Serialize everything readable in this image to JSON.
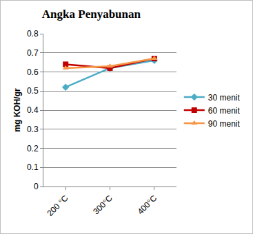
{
  "chart_data": {
    "type": "line",
    "title": "Angka Penyabunan",
    "y_label": "mg KOH/gr",
    "categories": [
      "200 °C",
      "300°C",
      "400°C"
    ],
    "series": [
      {
        "name": "30 menit",
        "color": "#4bacc6",
        "marker": "diamond",
        "values": [
          0.52,
          0.62,
          0.66
        ]
      },
      {
        "name": "60 menit",
        "color": "#c00000",
        "marker": "square",
        "values": [
          0.64,
          0.62,
          0.67
        ]
      },
      {
        "name": "90 menit",
        "color": "#f79646",
        "marker": "triangle-up",
        "values": [
          0.62,
          0.63,
          0.67
        ]
      }
    ],
    "ylim": [
      0,
      0.8
    ],
    "yticks": [
      0,
      0.1,
      0.2,
      0.3,
      0.4,
      0.5,
      0.6,
      0.7,
      0.8
    ],
    "grid": true,
    "legend": "right"
  }
}
